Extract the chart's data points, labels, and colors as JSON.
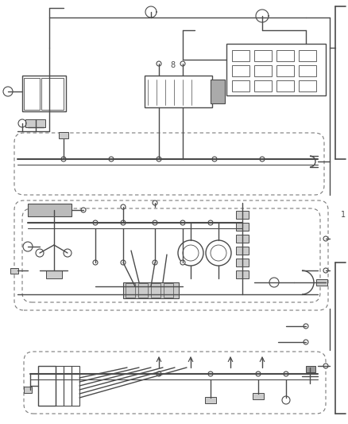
{
  "bg_color": "#ffffff",
  "line_color": "#4a4a4a",
  "dash_color": "#7a7a7a",
  "figsize": [
    4.39,
    5.33
  ],
  "dpi": 100
}
